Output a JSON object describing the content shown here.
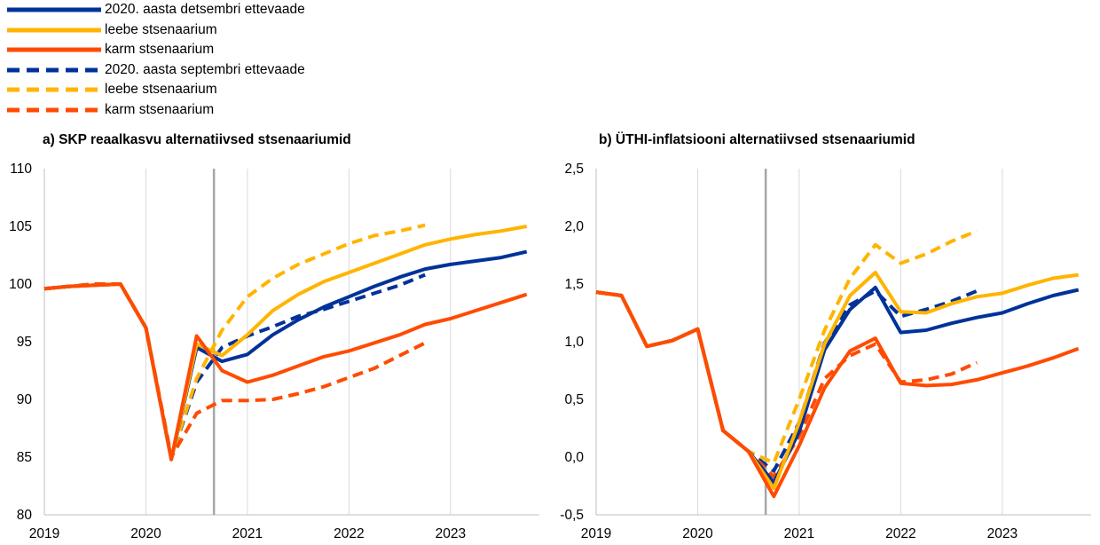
{
  "legend": [
    {
      "label": "2020. aasta detsembri ettevaade",
      "color": "#003299",
      "dash": false
    },
    {
      "label": "leebe stsenaarium",
      "color": "#FFB400",
      "dash": false
    },
    {
      "label": "karm stsenaarium",
      "color": "#FF4B00",
      "dash": false
    },
    {
      "label": "2020. aasta septembri ettevaade",
      "color": "#003299",
      "dash": true
    },
    {
      "label": "leebe stsenaarium",
      "color": "#FFB400",
      "dash": true
    },
    {
      "label": "karm stsenaarium",
      "color": "#FF4B00",
      "dash": true
    }
  ],
  "chart_data": [
    {
      "type": "line",
      "title": "a) SKP reaalkasvu alternatiivsed stsenaariumid",
      "xlabel": "",
      "ylabel": "",
      "x_tick_labels": [
        "2019",
        "2020",
        "2021",
        "2022",
        "2023"
      ],
      "y_ticks": [
        80,
        85,
        90,
        95,
        100,
        105,
        110
      ],
      "ylim": [
        80,
        110
      ],
      "xlim": [
        2019.0,
        2023.875
      ],
      "grid": "vertical",
      "vertical_marker_x": 2020.67,
      "series": [
        {
          "name": "2020. aasta detsembri ettevaade",
          "color": "#003299",
          "dash": false,
          "x": [
            2019.0,
            2019.25,
            2019.5,
            2019.75,
            2020.0,
            2020.25,
            2020.5,
            2020.75,
            2021.0,
            2021.25,
            2021.5,
            2021.75,
            2022.0,
            2022.25,
            2022.5,
            2022.75,
            2023.0,
            2023.25,
            2023.5,
            2023.75
          ],
          "y": [
            99.6,
            99.8,
            99.9,
            100.0,
            96.2,
            84.8,
            94.5,
            93.3,
            93.9,
            95.6,
            96.9,
            98.0,
            98.9,
            99.8,
            100.6,
            101.3,
            101.7,
            102.0,
            102.3,
            102.8
          ]
        },
        {
          "name": "leebe stsenaarium",
          "color": "#FFB400",
          "dash": false,
          "x": [
            2019.0,
            2019.25,
            2019.5,
            2019.75,
            2020.0,
            2020.25,
            2020.5,
            2020.75,
            2021.0,
            2021.25,
            2021.5,
            2021.75,
            2022.0,
            2022.25,
            2022.5,
            2022.75,
            2023.0,
            2023.25,
            2023.5,
            2023.75
          ],
          "y": [
            99.6,
            99.8,
            99.9,
            100.0,
            96.2,
            84.8,
            94.8,
            93.8,
            95.6,
            97.7,
            99.1,
            100.2,
            101.0,
            101.8,
            102.6,
            103.4,
            103.9,
            104.3,
            104.6,
            105.0
          ]
        },
        {
          "name": "karm stsenaarium",
          "color": "#FF4B00",
          "dash": false,
          "x": [
            2019.0,
            2019.25,
            2019.5,
            2019.75,
            2020.0,
            2020.25,
            2020.5,
            2020.75,
            2021.0,
            2021.25,
            2021.5,
            2021.75,
            2022.0,
            2022.25,
            2022.5,
            2022.75,
            2023.0,
            2023.25,
            2023.5,
            2023.75
          ],
          "y": [
            99.6,
            99.8,
            99.9,
            100.0,
            96.2,
            84.8,
            95.5,
            92.5,
            91.5,
            92.1,
            92.9,
            93.7,
            94.2,
            94.9,
            95.6,
            96.5,
            97.0,
            97.7,
            98.4,
            99.1
          ]
        },
        {
          "name": "2020. aasta septembri ettevaade",
          "color": "#003299",
          "dash": true,
          "x": [
            2019.0,
            2019.25,
            2019.5,
            2019.75,
            2020.0,
            2020.25,
            2020.5,
            2020.75,
            2021.0,
            2021.25,
            2021.5,
            2021.75,
            2022.0,
            2022.25,
            2022.5,
            2022.75
          ],
          "y": [
            99.6,
            99.8,
            100.0,
            100.0,
            96.2,
            85.0,
            91.5,
            94.5,
            95.5,
            96.3,
            97.2,
            97.8,
            98.5,
            99.2,
            99.9,
            100.8
          ]
        },
        {
          "name": "leebe stsenaarium",
          "color": "#FFB400",
          "dash": true,
          "x": [
            2019.0,
            2019.25,
            2019.5,
            2019.75,
            2020.0,
            2020.25,
            2020.5,
            2020.75,
            2021.0,
            2021.25,
            2021.5,
            2021.75,
            2022.0,
            2022.25,
            2022.5,
            2022.75
          ],
          "y": [
            99.6,
            99.8,
            100.0,
            100.0,
            96.2,
            85.0,
            91.8,
            96.0,
            98.9,
            100.5,
            101.7,
            102.6,
            103.5,
            104.2,
            104.6,
            105.1
          ]
        },
        {
          "name": "karm stsenaarium",
          "color": "#FF4B00",
          "dash": true,
          "x": [
            2019.0,
            2019.25,
            2019.5,
            2019.75,
            2020.0,
            2020.25,
            2020.5,
            2020.75,
            2021.0,
            2021.25,
            2021.5,
            2021.75,
            2022.0,
            2022.25,
            2022.5,
            2022.75
          ],
          "y": [
            99.6,
            99.8,
            100.0,
            100.0,
            96.2,
            85.0,
            88.8,
            89.9,
            89.9,
            90.0,
            90.5,
            91.1,
            91.9,
            92.7,
            93.8,
            94.9
          ]
        }
      ]
    },
    {
      "type": "line",
      "title": "b) ÜTHI-inflatsiooni  alternatiivsed stsenaariumid",
      "xlabel": "",
      "ylabel": "",
      "x_tick_labels": [
        "2019",
        "2020",
        "2021",
        "2022",
        "2023"
      ],
      "y_ticks": [
        -0.5,
        0.0,
        0.5,
        1.0,
        1.5,
        2.0,
        2.5
      ],
      "y_tick_labels": [
        "-0,5",
        "0,0",
        "0,5",
        "1,0",
        "1,5",
        "2,0",
        "2,5"
      ],
      "ylim": [
        -0.5,
        2.5
      ],
      "xlim": [
        2019.0,
        2023.875
      ],
      "grid": "vertical",
      "vertical_marker_x": 2020.67,
      "series": [
        {
          "name": "2020. aasta detsembri ettevaade",
          "color": "#003299",
          "dash": false,
          "x": [
            2019.0,
            2019.25,
            2019.5,
            2019.75,
            2020.0,
            2020.25,
            2020.5,
            2020.75,
            2021.0,
            2021.25,
            2021.5,
            2021.75,
            2022.0,
            2022.25,
            2022.5,
            2022.75,
            2023.0,
            2023.25,
            2023.5,
            2023.75
          ],
          "y": [
            1.43,
            1.4,
            0.96,
            1.01,
            1.11,
            0.23,
            0.05,
            -0.22,
            0.22,
            0.93,
            1.28,
            1.47,
            1.08,
            1.1,
            1.16,
            1.21,
            1.25,
            1.33,
            1.4,
            1.45
          ]
        },
        {
          "name": "leebe stsenaarium",
          "color": "#FFB400",
          "dash": false,
          "x": [
            2019.0,
            2019.25,
            2019.5,
            2019.75,
            2020.0,
            2020.25,
            2020.5,
            2020.75,
            2021.0,
            2021.25,
            2021.5,
            2021.75,
            2022.0,
            2022.25,
            2022.5,
            2022.75,
            2023.0,
            2023.25,
            2023.5,
            2023.75
          ],
          "y": [
            1.43,
            1.4,
            0.96,
            1.01,
            1.11,
            0.23,
            0.05,
            -0.27,
            0.3,
            0.98,
            1.4,
            1.6,
            1.26,
            1.25,
            1.33,
            1.39,
            1.42,
            1.49,
            1.55,
            1.58
          ]
        },
        {
          "name": "karm stsenaarium",
          "color": "#FF4B00",
          "dash": false,
          "x": [
            2019.0,
            2019.25,
            2019.5,
            2019.75,
            2020.0,
            2020.25,
            2020.5,
            2020.75,
            2021.0,
            2021.25,
            2021.5,
            2021.75,
            2022.0,
            2022.25,
            2022.5,
            2022.75,
            2023.0,
            2023.25,
            2023.5,
            2023.75
          ],
          "y": [
            1.43,
            1.4,
            0.96,
            1.01,
            1.11,
            0.23,
            0.05,
            -0.34,
            0.1,
            0.6,
            0.92,
            1.03,
            0.64,
            0.62,
            0.63,
            0.67,
            0.73,
            0.79,
            0.86,
            0.94
          ]
        },
        {
          "name": "2020. aasta septembri ettevaade",
          "color": "#003299",
          "dash": true,
          "x": [
            2019.0,
            2019.25,
            2019.5,
            2019.75,
            2020.0,
            2020.25,
            2020.5,
            2020.75,
            2021.0,
            2021.25,
            2021.5,
            2021.75,
            2022.0,
            2022.25,
            2022.5,
            2022.75
          ],
          "y": [
            1.43,
            1.4,
            0.96,
            1.01,
            1.11,
            0.23,
            0.05,
            -0.12,
            0.3,
            0.99,
            1.32,
            1.44,
            1.22,
            1.28,
            1.35,
            1.44
          ]
        },
        {
          "name": "leebe stsenaarium",
          "color": "#FFB400",
          "dash": true,
          "x": [
            2019.0,
            2019.25,
            2019.5,
            2019.75,
            2020.0,
            2020.25,
            2020.5,
            2020.75,
            2021.0,
            2021.25,
            2021.5,
            2021.75,
            2022.0,
            2022.25,
            2022.5,
            2022.75
          ],
          "y": [
            1.43,
            1.4,
            0.96,
            1.01,
            1.11,
            0.23,
            0.05,
            -0.05,
            0.5,
            1.1,
            1.55,
            1.84,
            1.68,
            1.76,
            1.87,
            1.96
          ]
        },
        {
          "name": "karm stsenaarium",
          "color": "#FF4B00",
          "dash": true,
          "x": [
            2019.0,
            2019.25,
            2019.5,
            2019.75,
            2020.0,
            2020.25,
            2020.5,
            2020.75,
            2021.0,
            2021.25,
            2021.5,
            2021.75,
            2022.0,
            2022.25,
            2022.5,
            2022.75
          ],
          "y": [
            1.43,
            1.4,
            0.96,
            1.01,
            1.11,
            0.23,
            0.05,
            -0.17,
            0.18,
            0.68,
            0.88,
            0.98,
            0.65,
            0.67,
            0.72,
            0.82
          ]
        }
      ]
    }
  ]
}
